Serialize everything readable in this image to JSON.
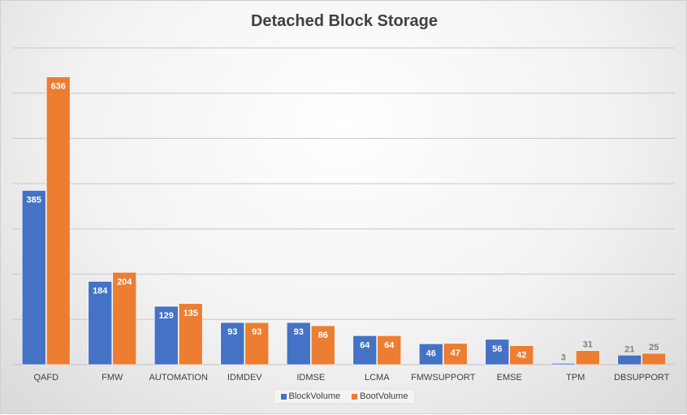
{
  "chart_data": {
    "type": "bar",
    "title": "Detached Block Storage",
    "categories": [
      "QAFD",
      "FMW",
      "AUTOMATION",
      "IDMDEV",
      "IDMSE",
      "LCMA",
      "FMWSUPPORT",
      "EMSE",
      "TPM",
      "DBSUPPORT"
    ],
    "series": [
      {
        "name": "BlockVolume",
        "color": "#4472c4",
        "values": [
          385,
          184,
          129,
          93,
          93,
          64,
          46,
          56,
          3,
          21
        ]
      },
      {
        "name": "BootVolume",
        "color": "#ed7d31",
        "values": [
          636,
          204,
          135,
          93,
          86,
          64,
          47,
          42,
          31,
          25
        ]
      }
    ],
    "ylim": [
      0,
      700
    ],
    "y_gridline_step": 100,
    "y_tick_labels_shown": false,
    "grid": true,
    "legend_position": "bottom"
  }
}
